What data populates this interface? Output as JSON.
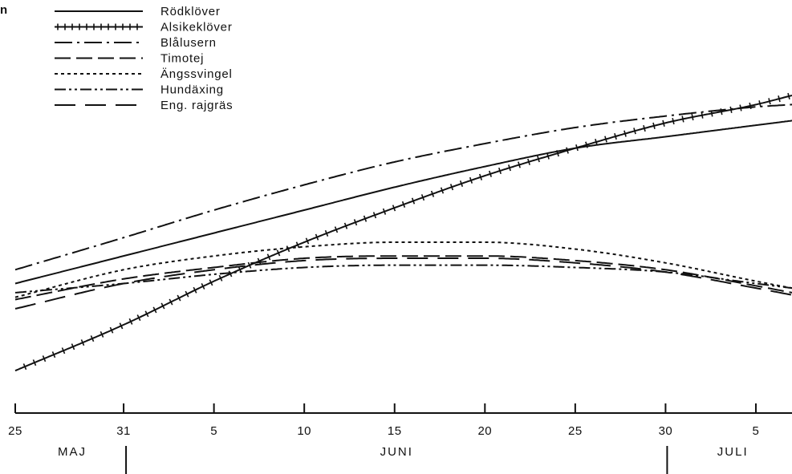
{
  "chart_data": {
    "type": "line",
    "corner_label": "n",
    "x_axis": {
      "day_ticks": [
        {
          "date": "05-25",
          "label": "25"
        },
        {
          "date": "05-31",
          "label": "31"
        },
        {
          "date": "06-05",
          "label": "5"
        },
        {
          "date": "06-10",
          "label": "10"
        },
        {
          "date": "06-15",
          "label": "15"
        },
        {
          "date": "06-20",
          "label": "20"
        },
        {
          "date": "06-25",
          "label": "25"
        },
        {
          "date": "06-30",
          "label": "30"
        },
        {
          "date": "07-05",
          "label": "5"
        }
      ],
      "months": [
        "MAJ",
        "JUNI",
        "JULI"
      ],
      "range": [
        "05-25",
        "07-07"
      ]
    },
    "grid": false,
    "legend_position": "top-left",
    "colors": {
      "ink": "#111111",
      "background": "#ffffff"
    },
    "series": [
      {
        "name": "Rödklöver",
        "dash": "solid",
        "points": [
          [
            "05-25",
            0.41
          ],
          [
            "05-31",
            0.47
          ],
          [
            "06-05",
            0.52
          ],
          [
            "06-10",
            0.57
          ],
          [
            "06-15",
            0.62
          ],
          [
            "06-20",
            0.665
          ],
          [
            "06-25",
            0.705
          ],
          [
            "06-30",
            0.73
          ],
          [
            "07-05",
            0.755
          ],
          [
            "07-07",
            0.765
          ]
        ]
      },
      {
        "name": "Alsikeklöver",
        "dash": "crosshatch",
        "points": [
          [
            "05-25",
            0.22
          ],
          [
            "05-31",
            0.32
          ],
          [
            "06-05",
            0.415
          ],
          [
            "06-10",
            0.5
          ],
          [
            "06-15",
            0.575
          ],
          [
            "06-20",
            0.645
          ],
          [
            "06-25",
            0.705
          ],
          [
            "06-30",
            0.76
          ],
          [
            "07-05",
            0.8
          ],
          [
            "07-07",
            0.82
          ]
        ]
      },
      {
        "name": "Blålusern",
        "dash": "dash-dot",
        "points": [
          [
            "05-25",
            0.44
          ],
          [
            "05-31",
            0.51
          ],
          [
            "06-05",
            0.57
          ],
          [
            "06-10",
            0.625
          ],
          [
            "06-15",
            0.675
          ],
          [
            "06-20",
            0.715
          ],
          [
            "06-25",
            0.75
          ],
          [
            "06-30",
            0.775
          ],
          [
            "07-05",
            0.795
          ],
          [
            "07-07",
            0.8
          ]
        ]
      },
      {
        "name": "Timotej",
        "dash": "long-dash",
        "points": [
          [
            "05-25",
            0.375
          ],
          [
            "05-31",
            0.42
          ],
          [
            "06-05",
            0.445
          ],
          [
            "06-10",
            0.465
          ],
          [
            "06-15",
            0.47
          ],
          [
            "06-20",
            0.47
          ],
          [
            "06-25",
            0.46
          ],
          [
            "06-30",
            0.44
          ],
          [
            "07-05",
            0.405
          ],
          [
            "07-07",
            0.39
          ]
        ]
      },
      {
        "name": "Ängssvingel",
        "dash": "dotted",
        "points": [
          [
            "05-25",
            0.38
          ],
          [
            "05-31",
            0.44
          ],
          [
            "06-05",
            0.47
          ],
          [
            "06-10",
            0.49
          ],
          [
            "06-15",
            0.5
          ],
          [
            "06-20",
            0.5
          ],
          [
            "06-25",
            0.485
          ],
          [
            "06-30",
            0.455
          ],
          [
            "07-05",
            0.415
          ],
          [
            "07-07",
            0.4
          ]
        ]
      },
      {
        "name": "Hundäxing",
        "dash": "dash-dot-dot",
        "points": [
          [
            "05-25",
            0.39
          ],
          [
            "05-31",
            0.41
          ],
          [
            "06-05",
            0.43
          ],
          [
            "06-10",
            0.445
          ],
          [
            "06-15",
            0.45
          ],
          [
            "06-20",
            0.45
          ],
          [
            "06-25",
            0.445
          ],
          [
            "06-30",
            0.435
          ],
          [
            "07-05",
            0.41
          ],
          [
            "07-07",
            0.4
          ]
        ]
      },
      {
        "name": "Eng. rajgräs",
        "dash": "long-dash-gap",
        "points": [
          [
            "05-25",
            0.355
          ],
          [
            "05-31",
            0.41
          ],
          [
            "06-05",
            0.44
          ],
          [
            "06-10",
            0.46
          ],
          [
            "06-15",
            0.465
          ],
          [
            "06-20",
            0.465
          ],
          [
            "06-25",
            0.455
          ],
          [
            "06-30",
            0.435
          ],
          [
            "07-05",
            0.4
          ],
          [
            "07-07",
            0.385
          ]
        ]
      }
    ]
  }
}
